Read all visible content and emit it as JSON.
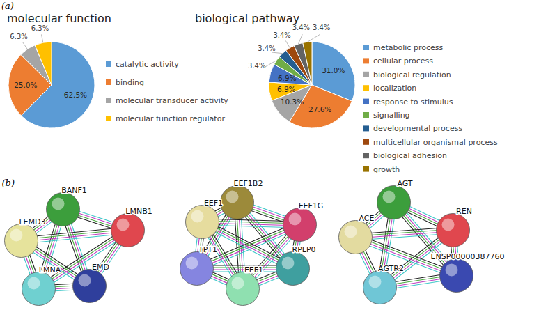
{
  "panel_labels": [
    "(a)",
    "(b)"
  ],
  "chart_data": [
    {
      "type": "pie",
      "title": "molecular function",
      "categories": [
        "catalytic activity",
        "binding",
        "molecular transducer activity",
        "molecular function regulator"
      ],
      "values": [
        62.5,
        25.0,
        6.3,
        6.3
      ],
      "value_labels": [
        "62.5%",
        "25.0%",
        "6.3%",
        "6.3%"
      ],
      "colors": [
        "#5b9bd5",
        "#ed7d31",
        "#a5a5a5",
        "#ffc000"
      ],
      "legend": "right",
      "data_labels": true
    },
    {
      "type": "pie",
      "title": "biological pathway",
      "categories": [
        "metabolic process",
        "cellular process",
        "biological regulation",
        "localization",
        "response to stimulus",
        "signalling",
        "developmental process",
        "multicellular organismal process",
        "biological adhesion",
        "growth"
      ],
      "values": [
        31.0,
        27.6,
        10.3,
        6.9,
        6.9,
        3.4,
        3.4,
        3.4,
        3.4,
        3.4
      ],
      "value_labels": [
        "31.0%",
        "27.6%",
        "10.3%",
        "6.9%",
        "6.9%",
        "3.4%",
        "3.4%",
        "3.4%",
        "3.4%",
        "3.4%"
      ],
      "colors": [
        "#5b9bd5",
        "#ed7d31",
        "#a5a5a5",
        "#ffc000",
        "#4472c4",
        "#70ad47",
        "#255e91",
        "#9e480e",
        "#636363",
        "#997300"
      ],
      "legend": "right",
      "data_labels": true
    }
  ],
  "networks": [
    {
      "nodes": [
        "BANF1",
        "LMNB1",
        "EMD",
        "LMNA",
        "LEMD3"
      ]
    },
    {
      "nodes": [
        "EEF1B2",
        "EEF1G",
        "RPLP0",
        "EEF1",
        "TPT1",
        "EEF1"
      ]
    },
    {
      "nodes": [
        "AGT",
        "REN",
        "ENSP00000387760",
        "AGTR2",
        "ACE"
      ]
    }
  ]
}
